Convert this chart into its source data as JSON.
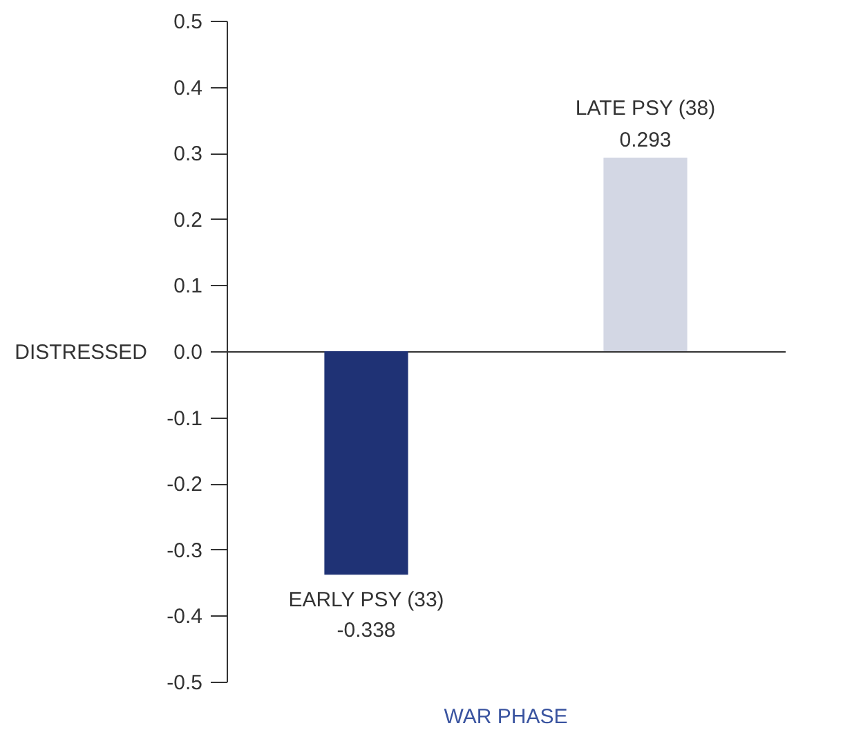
{
  "chart_data": {
    "type": "bar",
    "xlabel": "WAR PHASE",
    "ylabel": "DISTRESSED",
    "categories": [
      "EARLY PSY (33)",
      "LATE PSY (38)"
    ],
    "values": [
      -0.338,
      0.293
    ],
    "colors": [
      "#1f3275",
      "#d3d7e4"
    ],
    "ylim": [
      -0.5,
      0.5
    ],
    "yticks": [
      -0.5,
      -0.4,
      -0.3,
      -0.2,
      -0.1,
      {
        "value": 0,
        "label": "0.0"
      },
      0.1,
      0.2,
      0.3,
      0.4,
      0.5
    ],
    "data_labels": true
  }
}
